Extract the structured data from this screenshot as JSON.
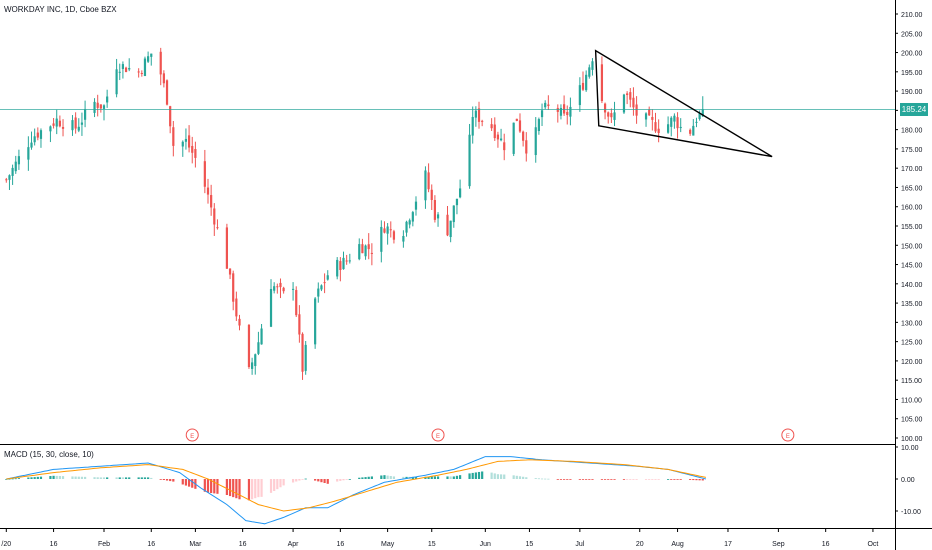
{
  "header": {
    "title": "WORKDAY INC, 1D, Cboe BZX"
  },
  "macd": {
    "title": "MACD (15, 30, close, 10)"
  },
  "last_price_label": "185.24",
  "colors": {
    "up": "#26a69a",
    "down": "#ef5350",
    "macd_line": "#2196f3",
    "signal_line": "#ff9800",
    "hist_up_strong": "#26a69a",
    "hist_up_weak": "#b2dfdb",
    "hist_down_strong": "#ef5350",
    "hist_down_weak": "#ffcdd2",
    "price_line": "#26a69a",
    "earnings": "#ef5350",
    "pattern": "#000000"
  },
  "chart_data": [
    {
      "type": "candlestick",
      "title": "WORKDAY INC, 1D, Cboe BZX",
      "ylim": [
        97,
        212
      ],
      "y_ticks": [
        "210.00",
        "205.00",
        "200.00",
        "195.00",
        "190.00",
        "185.00",
        "180.00",
        "175.00",
        "170.00",
        "165.00",
        "160.00",
        "155.00",
        "150.00",
        "145.00",
        "140.00",
        "135.00",
        "130.00",
        "125.00",
        "120.00",
        "115.00",
        "110.00",
        "105.00",
        "100.00"
      ],
      "x_ticks": [
        "/20",
        "16",
        "Feb",
        "16",
        "Mar",
        "16",
        "Apr",
        "16",
        "May",
        "15",
        "Jun",
        "15",
        "Jul",
        "20",
        "Aug",
        "17",
        "Sep",
        "16",
        "Oct"
      ],
      "x_ticks_days": [
        0,
        15,
        31,
        46,
        60,
        75,
        91,
        106,
        121,
        135,
        152,
        166,
        182,
        201,
        213,
        229,
        245,
        260,
        275
      ],
      "last_price": 185.24,
      "earnings_markers_days": [
        59,
        137,
        248
      ],
      "earnings_label": "E",
      "pattern_points": [
        {
          "day": 187,
          "price": 200.5
        },
        {
          "day": 188,
          "price": 181
        },
        {
          "day": 243,
          "price": 173
        }
      ],
      "anchor_closes": [
        {
          "day": 0,
          "close": 167
        },
        {
          "day": 8,
          "close": 178
        },
        {
          "day": 16,
          "close": 182.5
        },
        {
          "day": 22,
          "close": 180.5
        },
        {
          "day": 28,
          "close": 187
        },
        {
          "day": 31,
          "close": 186
        },
        {
          "day": 35,
          "close": 197
        },
        {
          "day": 42,
          "close": 195
        },
        {
          "day": 47,
          "close": 201
        },
        {
          "day": 51,
          "close": 188
        },
        {
          "day": 53,
          "close": 176
        },
        {
          "day": 57,
          "close": 177
        },
        {
          "day": 61,
          "close": 171
        },
        {
          "day": 66,
          "close": 157
        },
        {
          "day": 70,
          "close": 145
        },
        {
          "day": 74,
          "close": 128
        },
        {
          "day": 77,
          "close": 117
        },
        {
          "day": 80,
          "close": 125
        },
        {
          "day": 84,
          "close": 140
        },
        {
          "day": 88,
          "close": 137
        },
        {
          "day": 91,
          "close": 140
        },
        {
          "day": 94,
          "close": 118
        },
        {
          "day": 98,
          "close": 136
        },
        {
          "day": 103,
          "close": 144
        },
        {
          "day": 108,
          "close": 146
        },
        {
          "day": 112,
          "close": 150
        },
        {
          "day": 116,
          "close": 149
        },
        {
          "day": 120,
          "close": 155
        },
        {
          "day": 125,
          "close": 152
        },
        {
          "day": 129,
          "close": 160
        },
        {
          "day": 133,
          "close": 168
        },
        {
          "day": 136,
          "close": 158
        },
        {
          "day": 140,
          "close": 154
        },
        {
          "day": 144,
          "close": 165
        },
        {
          "day": 146,
          "close": 170
        },
        {
          "day": 148,
          "close": 184
        },
        {
          "day": 153,
          "close": 182
        },
        {
          "day": 158,
          "close": 176
        },
        {
          "day": 162,
          "close": 183
        },
        {
          "day": 166,
          "close": 173
        },
        {
          "day": 170,
          "close": 185
        },
        {
          "day": 174,
          "close": 186
        },
        {
          "day": 177,
          "close": 183
        },
        {
          "day": 180,
          "close": 187
        },
        {
          "day": 183,
          "close": 192
        },
        {
          "day": 186,
          "close": 199
        },
        {
          "day": 189,
          "close": 188
        },
        {
          "day": 192,
          "close": 182
        },
        {
          "day": 196,
          "close": 190
        },
        {
          "day": 200,
          "close": 184
        },
        {
          "day": 204,
          "close": 182
        },
        {
          "day": 208,
          "close": 180
        },
        {
          "day": 212,
          "close": 183
        },
        {
          "day": 216,
          "close": 178
        },
        {
          "day": 219,
          "close": 183
        },
        {
          "day": 222,
          "close": 185.24
        }
      ]
    },
    {
      "type": "macd",
      "title": "MACD (15, 30, close, 10)",
      "ylim": [
        -14,
        12
      ],
      "y_ticks": [
        "10.00",
        "0.00",
        "-10.00"
      ],
      "y_tick_values": [
        10,
        0,
        -10
      ],
      "macd_anchors": [
        {
          "day": 0,
          "value": 0
        },
        {
          "day": 15,
          "value": 3
        },
        {
          "day": 30,
          "value": 4
        },
        {
          "day": 45,
          "value": 5
        },
        {
          "day": 55,
          "value": 2
        },
        {
          "day": 62,
          "value": -3
        },
        {
          "day": 70,
          "value": -8
        },
        {
          "day": 76,
          "value": -13
        },
        {
          "day": 82,
          "value": -14
        },
        {
          "day": 88,
          "value": -12
        },
        {
          "day": 95,
          "value": -9
        },
        {
          "day": 102,
          "value": -9
        },
        {
          "day": 110,
          "value": -5
        },
        {
          "day": 120,
          "value": -1
        },
        {
          "day": 132,
          "value": 1
        },
        {
          "day": 142,
          "value": 3
        },
        {
          "day": 152,
          "value": 7
        },
        {
          "day": 160,
          "value": 7
        },
        {
          "day": 170,
          "value": 6
        },
        {
          "day": 185,
          "value": 5
        },
        {
          "day": 200,
          "value": 4
        },
        {
          "day": 210,
          "value": 3
        },
        {
          "day": 222,
          "value": 0
        }
      ],
      "signal_anchors": [
        {
          "day": 0,
          "value": 0
        },
        {
          "day": 15,
          "value": 2
        },
        {
          "day": 30,
          "value": 3.5
        },
        {
          "day": 45,
          "value": 4.5
        },
        {
          "day": 56,
          "value": 3
        },
        {
          "day": 64,
          "value": 0
        },
        {
          "day": 72,
          "value": -4
        },
        {
          "day": 80,
          "value": -8
        },
        {
          "day": 88,
          "value": -10
        },
        {
          "day": 96,
          "value": -9
        },
        {
          "day": 104,
          "value": -7
        },
        {
          "day": 114,
          "value": -4
        },
        {
          "day": 124,
          "value": -1
        },
        {
          "day": 136,
          "value": 1
        },
        {
          "day": 146,
          "value": 3
        },
        {
          "day": 156,
          "value": 5.5
        },
        {
          "day": 166,
          "value": 6
        },
        {
          "day": 180,
          "value": 5.5
        },
        {
          "day": 196,
          "value": 4.5
        },
        {
          "day": 210,
          "value": 3
        },
        {
          "day": 222,
          "value": 0.5
        }
      ]
    }
  ]
}
